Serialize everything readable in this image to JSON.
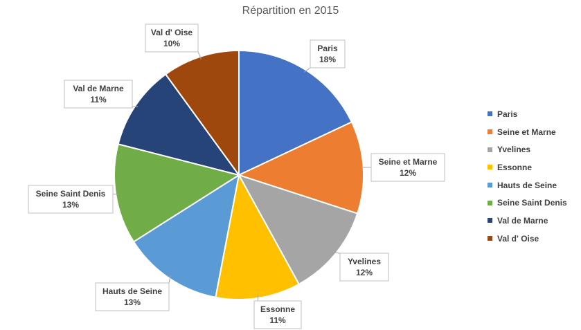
{
  "chart_data": {
    "type": "pie",
    "title": "Répartition en 2015",
    "legend_position": "right",
    "slices": [
      {
        "name": "Paris",
        "value": 18,
        "value_label": "18%",
        "color": "#4472C4"
      },
      {
        "name": "Seine et Marne",
        "value": 12,
        "value_label": "12%",
        "color": "#ED7D31"
      },
      {
        "name": "Yvelines",
        "value": 12,
        "value_label": "12%",
        "color": "#A5A5A5"
      },
      {
        "name": "Essonne",
        "value": 11,
        "value_label": "11%",
        "color": "#FFC000"
      },
      {
        "name": "Hauts de Seine",
        "value": 13,
        "value_label": "13%",
        "color": "#5B9BD5"
      },
      {
        "name": "Seine Saint Denis",
        "value": 13,
        "value_label": "13%",
        "color": "#70AD47"
      },
      {
        "name": "Val de Marne",
        "value": 11,
        "value_label": "11%",
        "color": "#264478"
      },
      {
        "name": "Val d' Oise",
        "value": 10,
        "value_label": "10%",
        "color": "#9E480E"
      }
    ]
  }
}
